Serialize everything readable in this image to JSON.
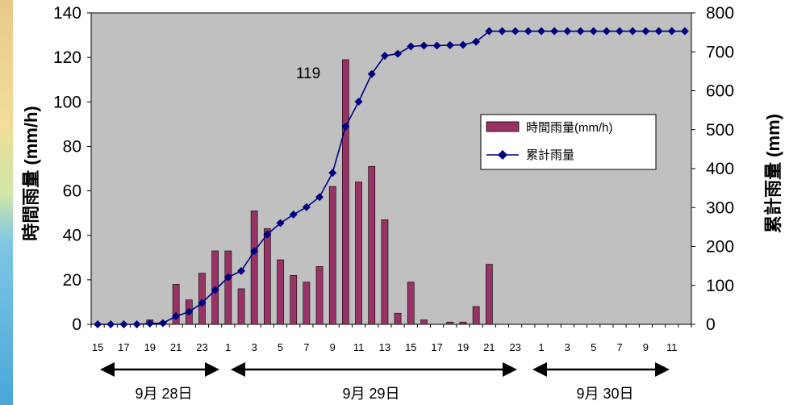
{
  "chart_data": {
    "type": "bar+line",
    "x_tick_labels": [
      "15",
      "17",
      "19",
      "21",
      "23",
      "1",
      "3",
      "5",
      "7",
      "9",
      "11",
      "13",
      "15",
      "17",
      "19",
      "21",
      "23",
      "1",
      "3",
      "5",
      "7",
      "9",
      "11"
    ],
    "hours": [
      15,
      16,
      17,
      18,
      19,
      20,
      21,
      22,
      23,
      0,
      1,
      2,
      3,
      4,
      5,
      6,
      7,
      8,
      9,
      10,
      11,
      12,
      13,
      14,
      15,
      16,
      17,
      18,
      19,
      20,
      21,
      22,
      23,
      0,
      1,
      2,
      3,
      4,
      5,
      6,
      7,
      8,
      9,
      10,
      11,
      12
    ],
    "series": [
      {
        "name": "時間雨量(mm/h)",
        "type": "bar",
        "axis": "left",
        "color": "#993366",
        "values": [
          0,
          0,
          0,
          0,
          2,
          1,
          18,
          11,
          23,
          33,
          33,
          16,
          51,
          43,
          29,
          22,
          19,
          26,
          62,
          119,
          64,
          71,
          47,
          5,
          19,
          2,
          0,
          1,
          1,
          8,
          27,
          0,
          0,
          0,
          0,
          0,
          0,
          0,
          0,
          0,
          0,
          0,
          0,
          0,
          0,
          0
        ]
      },
      {
        "name": "累計雨量",
        "type": "line",
        "axis": "right",
        "color": "#000080",
        "values": [
          0,
          0,
          0,
          0,
          2,
          3,
          21,
          32,
          55,
          88,
          121,
          137,
          188,
          231,
          260,
          282,
          301,
          327,
          389,
          508,
          572,
          643,
          690,
          695,
          714,
          716,
          716,
          717,
          718,
          726,
          753,
          753,
          753,
          753,
          753,
          753,
          753,
          753,
          753,
          753,
          753,
          753,
          753,
          753,
          753,
          753
        ]
      }
    ],
    "left_axis": {
      "label": "時間雨量 (mm/h)",
      "ylim": [
        0,
        140
      ],
      "ticks": [
        0,
        20,
        40,
        60,
        80,
        100,
        120,
        140
      ]
    },
    "right_axis": {
      "label": "累計雨量 (mm)",
      "ylim": [
        0,
        800
      ],
      "ticks": [
        0,
        100,
        200,
        300,
        400,
        500,
        600,
        700,
        800
      ]
    },
    "annotations": [
      {
        "text": "119"
      }
    ],
    "date_ranges": [
      "9月 28日",
      "9月 29日",
      "9月 30日"
    ],
    "legend_position": "center-right",
    "plot_background": "#c0c0c0"
  }
}
